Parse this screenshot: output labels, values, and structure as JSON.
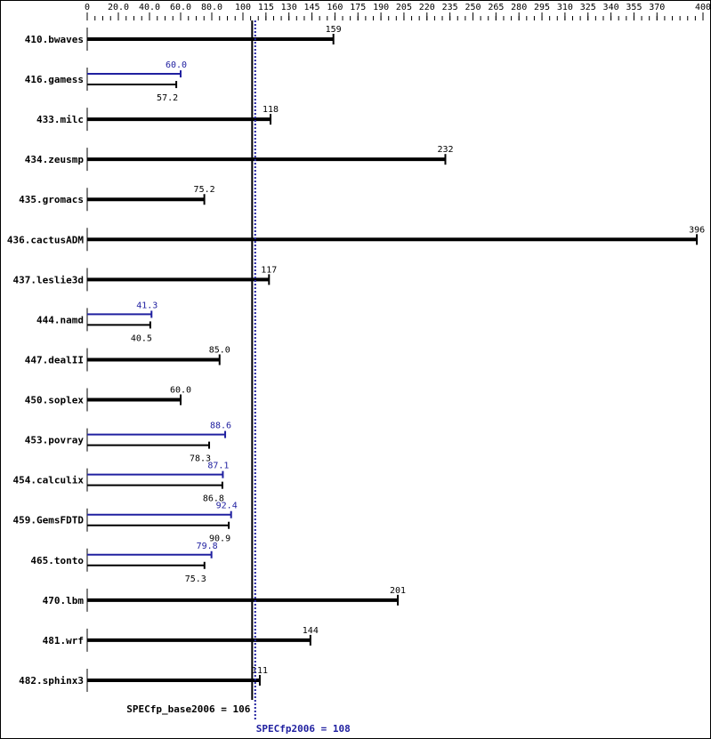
{
  "chart_data": {
    "type": "bar",
    "orientation": "horizontal",
    "x_ticks": [
      "0",
      "20.0",
      "40.0",
      "60.0",
      "80.0",
      "100",
      "115",
      "130",
      "145",
      "160",
      "175",
      "190",
      "205",
      "220",
      "235",
      "250",
      "265",
      "280",
      "295",
      "310",
      "325",
      "340",
      "355",
      "370",
      "400"
    ],
    "xlim": [
      0,
      400
    ],
    "grid": false,
    "colors": {
      "base": "#000000",
      "peak": "#2020a0"
    },
    "categories": [
      "410.bwaves",
      "416.gamess",
      "433.milc",
      "434.zeusmp",
      "435.gromacs",
      "436.cactusADM",
      "437.leslie3d",
      "444.namd",
      "447.dealII",
      "450.soplex",
      "453.povray",
      "454.calculix",
      "459.GemsFDTD",
      "465.tonto",
      "470.lbm",
      "481.wrf",
      "482.sphinx3"
    ],
    "series": [
      {
        "name": "base",
        "values": [
          159,
          57.2,
          118,
          232,
          75.2,
          396,
          117,
          40.5,
          85.0,
          60.0,
          78.3,
          86.8,
          90.9,
          75.3,
          201,
          144,
          111
        ],
        "labels": [
          "159",
          "57.2",
          "118",
          "232",
          "75.2",
          "396",
          "117",
          "40.5",
          "85.0",
          "60.0",
          "78.3",
          "86.8",
          "90.9",
          "75.3",
          "201",
          "144",
          "111"
        ]
      },
      {
        "name": "peak",
        "values": [
          null,
          60.0,
          null,
          null,
          null,
          null,
          null,
          41.3,
          null,
          null,
          88.6,
          87.1,
          92.4,
          79.8,
          null,
          null,
          null
        ],
        "labels": [
          null,
          "60.0",
          null,
          null,
          null,
          null,
          null,
          "41.3",
          null,
          null,
          "88.6",
          "87.1",
          "92.4",
          "79.8",
          null,
          null,
          null
        ]
      }
    ],
    "reference_lines": [
      {
        "label": "SPECfp_base2006 = 106",
        "value": 106,
        "style": "solid"
      },
      {
        "label": "SPECfp2006 = 108",
        "value": 108,
        "style": "dotted"
      }
    ]
  }
}
